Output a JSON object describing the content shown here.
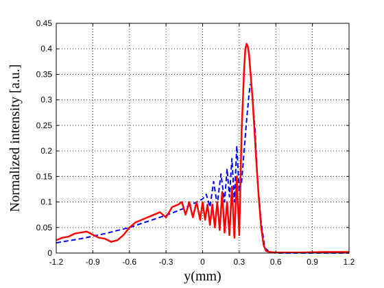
{
  "chart_data": {
    "type": "line",
    "title": "",
    "xlabel": "y(mm)",
    "ylabel": "Normalized intensity [a.u.]",
    "xlim": [
      -1.2,
      1.2
    ],
    "ylim": [
      0,
      0.45
    ],
    "xticks": [
      -1.2,
      -0.9,
      -0.6,
      -0.3,
      0,
      0.3,
      0.6,
      0.9,
      1.2
    ],
    "xtick_labels": [
      "-1.2",
      "-0.9",
      "-0.6",
      "-0.3",
      "0",
      "0.3",
      "0.6",
      "0.9",
      "1.2"
    ],
    "yticks": [
      0,
      0.05,
      0.1,
      0.15,
      0.2,
      0.25,
      0.3,
      0.35,
      0.4,
      0.45
    ],
    "ytick_labels": [
      "0",
      "0.05",
      "0.1",
      "0.15",
      "0.2",
      "0.25",
      "0.3",
      "0.35",
      "0.4",
      "0.45"
    ],
    "grid": true,
    "series": [
      {
        "color": "#0000ff",
        "style": "dashed",
        "x": [
          -1.2,
          -1.1,
          -1.0,
          -0.9,
          -0.8,
          -0.7,
          -0.6,
          -0.5,
          -0.4,
          -0.3,
          -0.2,
          -0.15,
          -0.1,
          -0.05,
          0,
          0.03,
          0.06,
          0.09,
          0.12,
          0.15,
          0.18,
          0.2,
          0.22,
          0.24,
          0.26,
          0.28,
          0.3,
          0.32,
          0.34,
          0.36,
          0.38,
          0.39,
          0.4,
          0.41,
          0.43,
          0.45,
          0.48,
          0.51,
          0.55,
          0.6,
          0.8,
          1.0,
          1.2
        ],
        "y": [
          0.02,
          0.024,
          0.028,
          0.033,
          0.038,
          0.044,
          0.05,
          0.058,
          0.066,
          0.074,
          0.083,
          0.088,
          0.094,
          0.1,
          0.106,
          0.115,
          0.09,
          0.14,
          0.095,
          0.155,
          0.1,
          0.165,
          0.11,
          0.185,
          0.1,
          0.21,
          0.12,
          0.14,
          0.2,
          0.26,
          0.31,
          0.33,
          0.33,
          0.3,
          0.24,
          0.14,
          0.06,
          0.01,
          0.002,
          0,
          0,
          0,
          0
        ]
      },
      {
        "color": "#ff0000",
        "style": "solid",
        "x": [
          -1.2,
          -1.15,
          -1.1,
          -1.05,
          -1.0,
          -0.95,
          -0.9,
          -0.85,
          -0.8,
          -0.75,
          -0.7,
          -0.65,
          -0.6,
          -0.55,
          -0.5,
          -0.45,
          -0.4,
          -0.35,
          -0.3,
          -0.25,
          -0.2,
          -0.17,
          -0.14,
          -0.11,
          -0.08,
          -0.05,
          -0.02,
          0,
          0.02,
          0.04,
          0.06,
          0.08,
          0.1,
          0.12,
          0.14,
          0.16,
          0.18,
          0.2,
          0.22,
          0.24,
          0.26,
          0.28,
          0.3,
          0.32,
          0.34,
          0.35,
          0.36,
          0.37,
          0.38,
          0.39,
          0.4,
          0.41,
          0.42,
          0.44,
          0.46,
          0.48,
          0.5,
          0.52,
          0.55,
          0.6,
          0.8,
          1.0,
          1.2
        ],
        "y": [
          0.025,
          0.03,
          0.032,
          0.038,
          0.04,
          0.042,
          0.036,
          0.03,
          0.028,
          0.022,
          0.025,
          0.035,
          0.05,
          0.06,
          0.065,
          0.07,
          0.075,
          0.08,
          0.07,
          0.09,
          0.095,
          0.1,
          0.075,
          0.1,
          0.07,
          0.1,
          0.065,
          0.1,
          0.065,
          0.095,
          0.055,
          0.095,
          0.05,
          0.1,
          0.045,
          0.12,
          0.04,
          0.1,
          0.035,
          0.13,
          0.03,
          0.15,
          0.035,
          0.24,
          0.36,
          0.4,
          0.41,
          0.405,
          0.39,
          0.36,
          0.33,
          0.3,
          0.26,
          0.18,
          0.11,
          0.05,
          0.015,
          0.004,
          0.002,
          0.001,
          0.001,
          0.002,
          0.002
        ]
      }
    ]
  }
}
